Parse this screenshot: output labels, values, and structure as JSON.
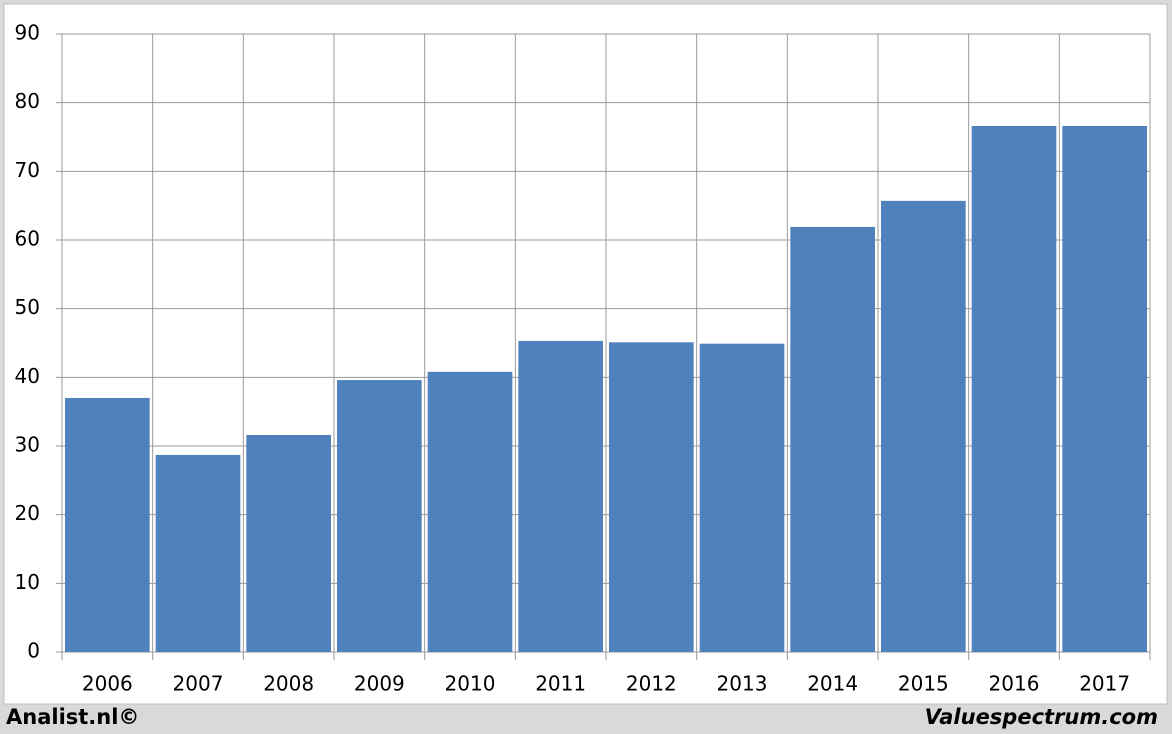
{
  "chart_data": {
    "type": "bar",
    "categories": [
      "2006",
      "2007",
      "2008",
      "2009",
      "2010",
      "2011",
      "2012",
      "2013",
      "2014",
      "2015",
      "2016",
      "2017"
    ],
    "values": [
      37.0,
      28.7,
      31.6,
      39.6,
      40.8,
      45.3,
      45.1,
      44.9,
      61.9,
      65.7,
      76.6,
      76.6
    ],
    "color": "#4f81bd",
    "ylim": [
      0,
      90
    ],
    "yticks": [
      0,
      10,
      20,
      30,
      40,
      50,
      60,
      70,
      80,
      90
    ],
    "grid": true,
    "annotations": [
      "Analist.nl©",
      "Valuespectrum.com"
    ]
  }
}
